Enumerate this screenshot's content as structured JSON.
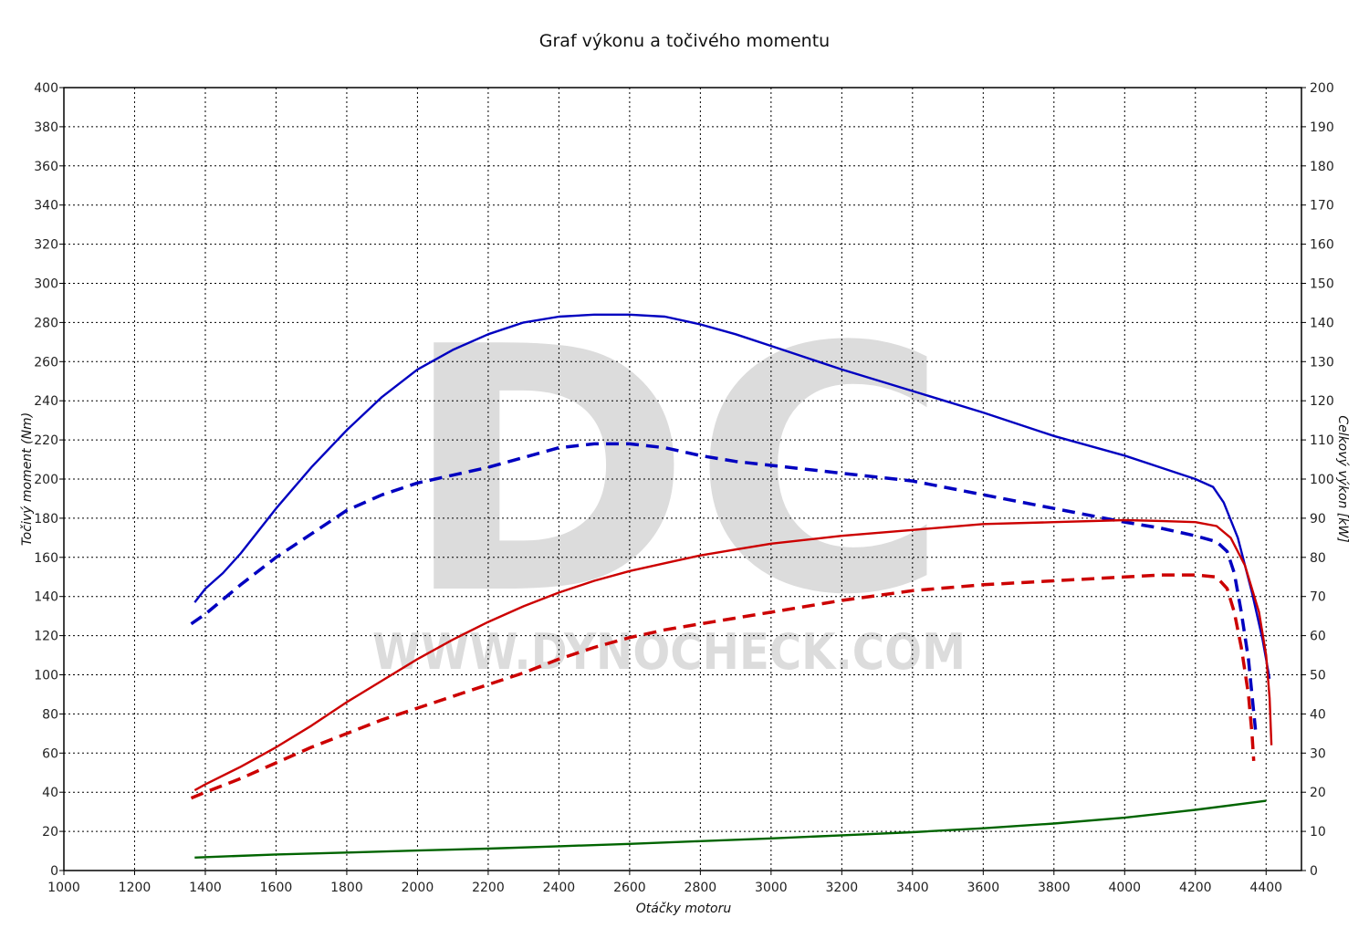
{
  "chart_data": {
    "type": "line",
    "title": "Graf výkonu a točivého momentu",
    "xlabel": "Otáčky motoru",
    "ylabel": "Točivý moment (Nm)",
    "y2label": "Celkový výkon [kW]",
    "xlim": [
      1000,
      4500
    ],
    "ylim": [
      0,
      400
    ],
    "y2lim": [
      0,
      200
    ],
    "x_ticks": [
      1000,
      1200,
      1400,
      1600,
      1800,
      2000,
      2200,
      2400,
      2600,
      2800,
      3000,
      3200,
      3400,
      3600,
      3800,
      4000,
      4200,
      4400
    ],
    "y_ticks": [
      0,
      20,
      40,
      60,
      80,
      100,
      120,
      140,
      160,
      180,
      200,
      220,
      240,
      260,
      280,
      300,
      320,
      340,
      360,
      380,
      400
    ],
    "y2_ticks": [
      0,
      10,
      20,
      30,
      40,
      50,
      60,
      70,
      80,
      90,
      100,
      110,
      120,
      130,
      140,
      150,
      160,
      170,
      180,
      190,
      200
    ],
    "grid": true,
    "watermark": {
      "logo": "DC",
      "text": "WWW.DYNOCHECK.COM"
    },
    "series": [
      {
        "color": "#0000c0",
        "dashed": false,
        "axis": "left",
        "x": [
          1370,
          1400,
          1450,
          1500,
          1600,
          1700,
          1800,
          1900,
          2000,
          2100,
          2200,
          2300,
          2400,
          2500,
          2600,
          2700,
          2800,
          2900,
          3000,
          3200,
          3400,
          3600,
          3800,
          4000,
          4100,
          4200,
          4250,
          4280,
          4320,
          4360,
          4390,
          4410
        ],
        "y": [
          137,
          144,
          152,
          162,
          185,
          206,
          225,
          242,
          256,
          266,
          274,
          280,
          283,
          284,
          284,
          283,
          279,
          274,
          268,
          256,
          245,
          234,
          222,
          212,
          206,
          200,
          196,
          188,
          170,
          142,
          118,
          98
        ]
      },
      {
        "color": "#0000c0",
        "dashed": true,
        "axis": "left",
        "x": [
          1360,
          1400,
          1500,
          1600,
          1700,
          1800,
          1900,
          2000,
          2100,
          2200,
          2300,
          2400,
          2500,
          2600,
          2700,
          2800,
          2900,
          3000,
          3200,
          3400,
          3600,
          3800,
          4000,
          4100,
          4200,
          4260,
          4290,
          4310,
          4330,
          4350,
          4370
        ],
        "y": [
          126,
          131,
          146,
          160,
          172,
          184,
          192,
          198,
          202,
          206,
          211,
          216,
          218,
          218,
          216,
          212,
          209,
          207,
          203,
          199,
          192,
          185,
          178,
          175,
          171,
          168,
          163,
          152,
          132,
          108,
          72
        ]
      },
      {
        "color": "#cc0000",
        "dashed": false,
        "axis": "right",
        "x": [
          1370,
          1400,
          1500,
          1600,
          1700,
          1800,
          1900,
          2000,
          2100,
          2200,
          2300,
          2400,
          2500,
          2600,
          2700,
          2800,
          2900,
          3000,
          3200,
          3400,
          3600,
          3800,
          4000,
          4100,
          4200,
          4260,
          4300,
          4340,
          4380,
          4400,
          4410,
          4415
        ],
        "y": [
          20.5,
          22,
          26.5,
          31.5,
          37,
          43,
          48.5,
          54,
          59,
          63.5,
          67.5,
          71,
          74,
          76.5,
          78.5,
          80.5,
          82,
          83.5,
          85.5,
          87,
          88.5,
          89,
          89.5,
          89.3,
          89,
          88,
          85,
          78,
          66,
          55,
          44,
          32
        ]
      },
      {
        "color": "#cc0000",
        "dashed": true,
        "axis": "right",
        "x": [
          1360,
          1400,
          1500,
          1600,
          1700,
          1800,
          1900,
          2000,
          2100,
          2200,
          2300,
          2400,
          2500,
          2600,
          2700,
          2800,
          2900,
          3000,
          3200,
          3400,
          3600,
          3800,
          4000,
          4100,
          4200,
          4260,
          4290,
          4310,
          4330,
          4350,
          4360,
          4365
        ],
        "y": [
          18.5,
          20,
          23.5,
          27.5,
          31.5,
          35,
          38.5,
          41.5,
          44.5,
          47.5,
          50.5,
          54,
          57,
          59.5,
          61.5,
          63,
          64.5,
          66,
          69,
          71.5,
          73,
          74,
          75,
          75.5,
          75.5,
          75,
          72,
          66,
          57,
          45,
          35,
          28
        ]
      },
      {
        "color": "#006400",
        "dashed": false,
        "axis": "right",
        "x": [
          1370,
          1600,
          1800,
          2000,
          2200,
          2400,
          2600,
          2800,
          3000,
          3200,
          3400,
          3600,
          3800,
          4000,
          4200,
          4400
        ],
        "y": [
          3.3,
          4.1,
          4.6,
          5.1,
          5.6,
          6.2,
          6.8,
          7.5,
          8.2,
          9,
          9.8,
          10.8,
          12,
          13.5,
          15.5,
          17.8
        ]
      }
    ]
  }
}
